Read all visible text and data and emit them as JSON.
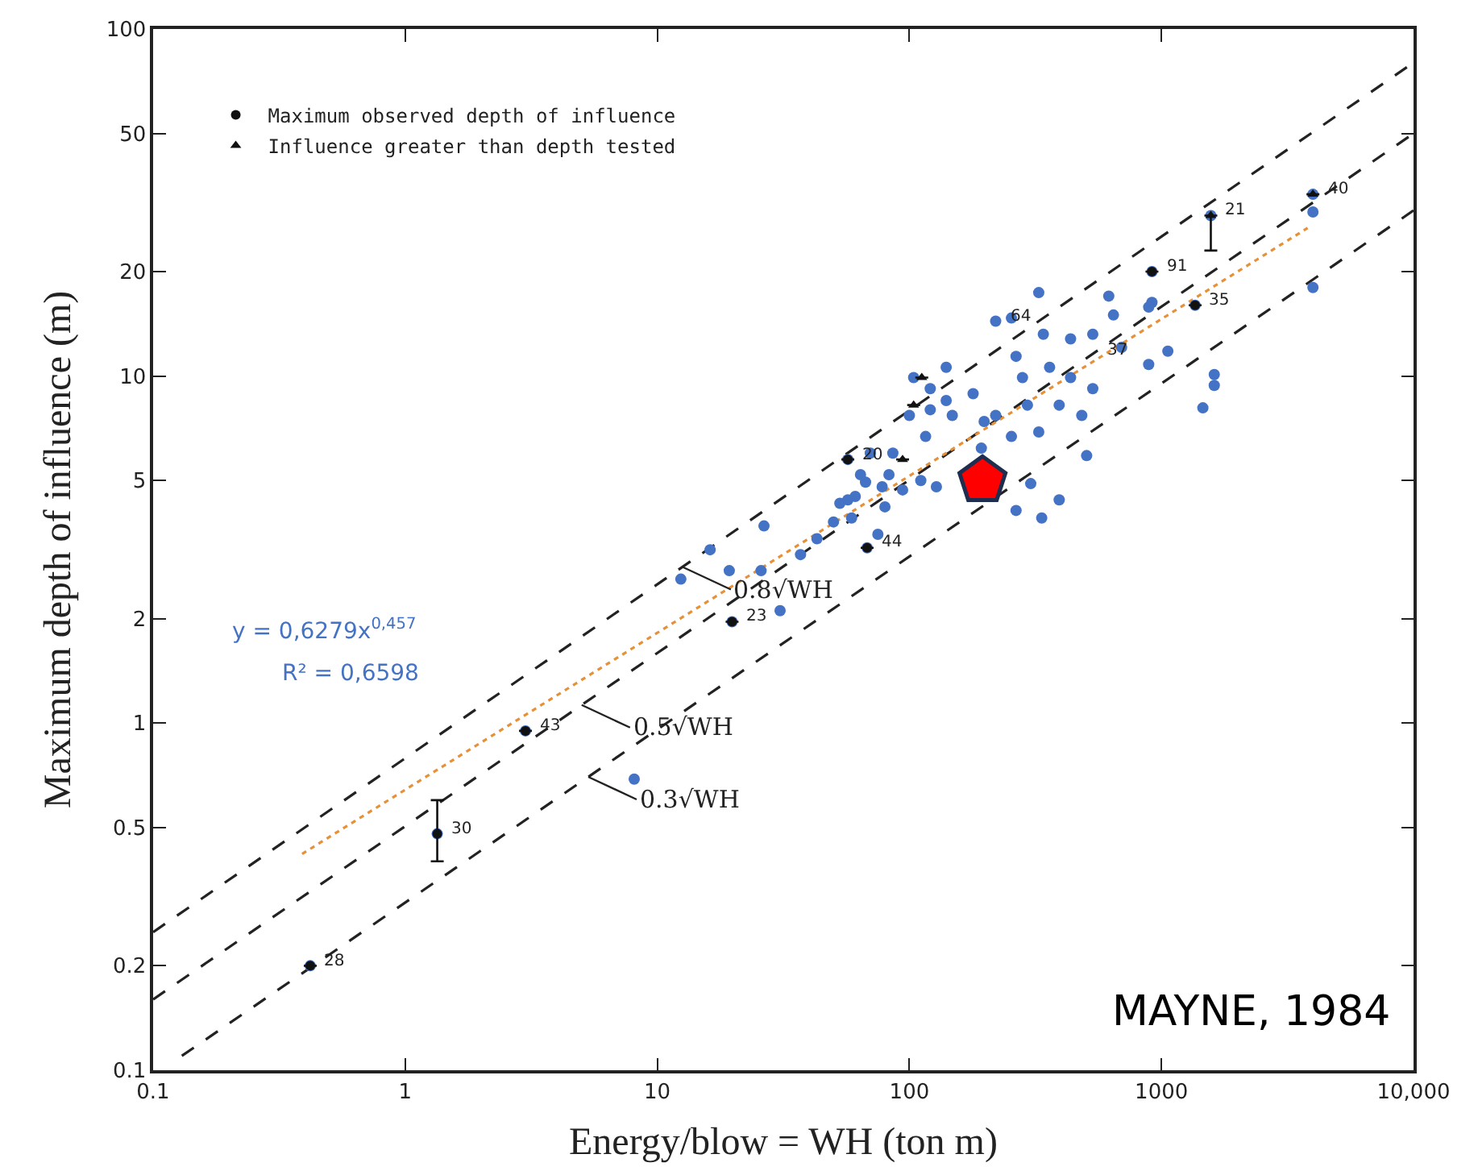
{
  "chart_data": {
    "type": "scatter",
    "xlabel": "Energy/blow = WH (ton m)",
    "ylabel": "Maximum depth of influence (m)",
    "log": "xy",
    "legend": "top left",
    "xlim": [
      0.1,
      10000
    ],
    "xticks": [
      0.1,
      1,
      10,
      100,
      1000,
      {
        "value": 10000,
        "label": "10,000"
      }
    ],
    "ylim": [
      0.1,
      100
    ],
    "yticks": [
      0.1,
      0.2,
      0.5,
      1,
      2,
      5,
      10,
      20,
      50,
      100
    ],
    "series": [
      {
        "type": "line",
        "name": "0.8√WH",
        "color": "#222222",
        "line_style": "dashed",
        "x": [
          0.1,
          10000
        ],
        "values": [
          0.25,
          80
        ]
      },
      {
        "type": "line",
        "name": "0.5√WH",
        "color": "#222222",
        "line_style": "dashed",
        "x": [
          0.1,
          10000
        ],
        "values": [
          0.16,
          50
        ]
      },
      {
        "type": "line",
        "name": "0.3√WH",
        "color": "#222222",
        "line_style": "dashed",
        "x": [
          0.13,
          10000
        ],
        "values": [
          0.11,
          30
        ]
      },
      {
        "type": "line",
        "color": "#e69138",
        "line_style": "dotted",
        "x": [
          0.39,
          3800
        ],
        "values": [
          0.42,
          26.7
        ]
      },
      {
        "color": "#4472c4",
        "marker": "circle",
        "x": [
          8.1,
          19.8,
          30.7,
          16.2,
          26.5,
          12.4,
          19.3,
          25.8,
          43,
          50,
          37,
          57,
          67,
          83,
          3990,
          3990,
          3990,
          1570,
          1620,
          1620,
          1460,
          917,
          1360,
          1060,
          890,
          917,
          326,
          220,
          254,
          618,
          645,
          695,
          890,
          340,
          436,
          534,
          360,
          436,
          534,
          393,
          294,
          281,
          265,
          483,
          326,
          254,
          220,
          179,
          148,
          121,
          140,
          121,
          100,
          116,
          86,
          70,
          64,
          78,
          61,
          53,
          68,
          57,
          265,
          335,
          393,
          303,
          505,
          104,
          140,
          198,
          193,
          111,
          94,
          128,
          80,
          59,
          75,
          0.42,
          1.34,
          3.0
        ],
        "values": [
          0.69,
          1.96,
          2.11,
          3.16,
          3.7,
          2.6,
          2.75,
          2.75,
          3.4,
          3.8,
          3.06,
          4.4,
          4.95,
          5.2,
          33.4,
          29.7,
          18,
          29,
          10.1,
          9.4,
          8.1,
          20,
          16,
          11.8,
          10.8,
          16.3,
          17.4,
          14.4,
          14.7,
          17,
          15,
          12.1,
          15.8,
          13.2,
          12.8,
          13.2,
          10.6,
          9.9,
          9.2,
          8.25,
          8.25,
          9.9,
          11.4,
          7.7,
          6.9,
          6.7,
          7.7,
          8.9,
          7.7,
          8.0,
          10.6,
          9.2,
          7.7,
          6.7,
          6.0,
          6.0,
          5.2,
          4.8,
          4.5,
          4.3,
          3.2,
          5.75,
          4.1,
          3.9,
          4.4,
          4.9,
          5.9,
          9.9,
          8.5,
          7.4,
          6.2,
          5.0,
          4.7,
          4.8,
          4.2,
          3.9,
          3.5,
          0.2,
          0.48,
          0.95
        ]
      },
      {
        "name": "Maximum observed depth of influence",
        "color": "#111111",
        "marker": "circle",
        "x": [
          0.42,
          1.34,
          3.0,
          19.8,
          917,
          57,
          68,
          1360
        ],
        "values": [
          0.2,
          0.48,
          0.95,
          1.96,
          20,
          5.75,
          3.2,
          16
        ],
        "errors": [
          null,
          [
            0.4,
            0.6
          ],
          null,
          null,
          null,
          null,
          null,
          null
        ]
      },
      {
        "name": "Influence greater than depth tested",
        "color": "#111111",
        "marker": "triangle",
        "x": [
          112,
          104,
          94,
          3990,
          1570
        ],
        "values": [
          9.9,
          8.25,
          5.75,
          33.4,
          29
        ],
        "errors": [
          null,
          null,
          null,
          null,
          [
            23,
            29
          ]
        ]
      },
      {
        "color": "#ff0000",
        "x": [
          195
        ],
        "values": [
          5.0
        ]
      }
    ],
    "annotations": [
      "y = 0,6279x$^{0,457}$",
      "R² = 0,6598",
      "MAYNE, 1984",
      {
        "text": "28",
        "x": 0.42,
        "y": 0.2
      },
      {
        "text": "30",
        "x": 1.34,
        "y": 0.48
      },
      {
        "text": "43",
        "x": 3.0,
        "y": 0.95
      },
      {
        "text": "23",
        "x": 19.8,
        "y": 1.96
      },
      {
        "text": "40",
        "x": 3990,
        "y": 33.4
      },
      {
        "text": "21",
        "x": 1570,
        "y": 29
      },
      {
        "text": "91",
        "x": 917,
        "y": 20
      },
      {
        "text": "35",
        "x": 1360,
        "y": 16
      },
      {
        "text": "44",
        "x": 68,
        "y": 3.2
      },
      {
        "text": "20",
        "x": 57,
        "y": 5.75
      },
      {
        "text": "64",
        "x": 220,
        "y": 14.4
      },
      {
        "text": "37",
        "x": 534,
        "y": 11.5
      }
    ]
  }
}
